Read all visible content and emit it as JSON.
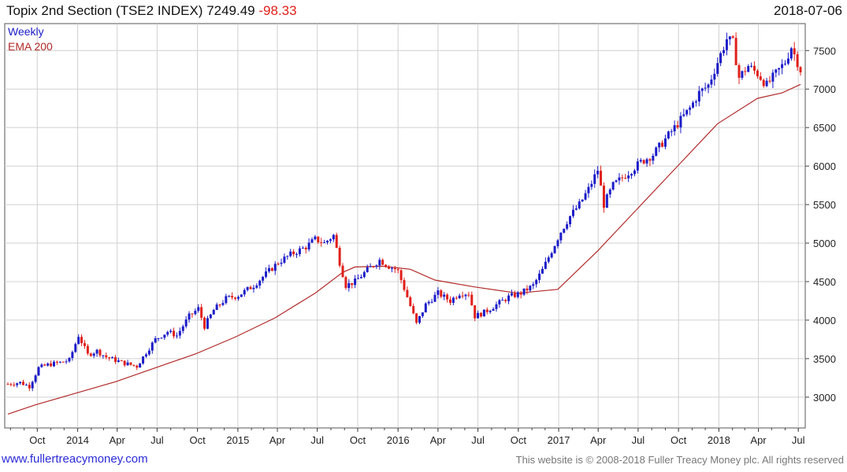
{
  "header": {
    "title": "Topix 2nd Section (TSE2 INDEX)",
    "last_value": "7249.49",
    "change": "-98.33",
    "date": "2018-07-06"
  },
  "legend": {
    "series1": "Weekly",
    "series2": "EMA 200"
  },
  "footer": {
    "link": "www.fullertreacymoney.com",
    "copyright": "This website is © 2008-2018 Fuller Treacy Money plc. All rights reserved"
  },
  "colors": {
    "up": "#1c1cc8",
    "down": "#e0201b",
    "ema": "#b22a2a",
    "grid": "#d0d0d0",
    "axis": "#444444"
  },
  "chart_data": {
    "type": "candlestick",
    "interval": "weekly",
    "x_start": "2013-07-26",
    "x_end": "2018-07-06",
    "x_tick_labels": [
      {
        "date": "2013-10-01",
        "label": "Oct"
      },
      {
        "date": "2014-01-01",
        "label": "2014"
      },
      {
        "date": "2014-04-01",
        "label": "Apr"
      },
      {
        "date": "2014-07-01",
        "label": "Jul"
      },
      {
        "date": "2014-10-01",
        "label": "Oct"
      },
      {
        "date": "2015-01-01",
        "label": "2015"
      },
      {
        "date": "2015-04-01",
        "label": "Apr"
      },
      {
        "date": "2015-07-01",
        "label": "Jul"
      },
      {
        "date": "2015-10-01",
        "label": "Oct"
      },
      {
        "date": "2016-01-01",
        "label": "2016"
      },
      {
        "date": "2016-04-01",
        "label": "Apr"
      },
      {
        "date": "2016-07-01",
        "label": "Jul"
      },
      {
        "date": "2016-10-01",
        "label": "Oct"
      },
      {
        "date": "2017-01-01",
        "label": "2017"
      },
      {
        "date": "2017-04-01",
        "label": "Apr"
      },
      {
        "date": "2017-07-01",
        "label": "Jul"
      },
      {
        "date": "2017-10-01",
        "label": "Oct"
      },
      {
        "date": "2018-01-01",
        "label": "2018"
      },
      {
        "date": "2018-04-01",
        "label": "Apr"
      },
      {
        "date": "2018-07-01",
        "label": "Jul"
      }
    ],
    "y_ticks": [
      3000,
      3500,
      4000,
      4500,
      5000,
      5500,
      6000,
      6500,
      7000,
      7500
    ],
    "ylim": [
      2600,
      7850
    ],
    "close_path": [
      [
        "2013-07-26",
        3170
      ],
      [
        "2013-08-23",
        3190
      ],
      [
        "2013-09-13",
        3140
      ],
      [
        "2013-10-04",
        3380
      ],
      [
        "2013-10-25",
        3420
      ],
      [
        "2013-11-22",
        3450
      ],
      [
        "2013-12-13",
        3480
      ],
      [
        "2014-01-03",
        3800
      ],
      [
        "2014-01-24",
        3550
      ],
      [
        "2014-02-14",
        3600
      ],
      [
        "2014-03-07",
        3520
      ],
      [
        "2014-03-28",
        3480
      ],
      [
        "2014-04-18",
        3440
      ],
      [
        "2014-05-16",
        3400
      ],
      [
        "2014-06-06",
        3580
      ],
      [
        "2014-06-27",
        3750
      ],
      [
        "2014-07-25",
        3850
      ],
      [
        "2014-08-15",
        3800
      ],
      [
        "2014-09-12",
        4050
      ],
      [
        "2014-10-03",
        4150
      ],
      [
        "2014-10-17",
        3920
      ],
      [
        "2014-11-07",
        4130
      ],
      [
        "2014-12-05",
        4280
      ],
      [
        "2015-01-02",
        4320
      ],
      [
        "2015-02-06",
        4450
      ],
      [
        "2015-03-06",
        4600
      ],
      [
        "2015-04-03",
        4750
      ],
      [
        "2015-05-01",
        4850
      ],
      [
        "2015-06-05",
        4950
      ],
      [
        "2015-06-26",
        5050
      ],
      [
        "2015-07-17",
        5000
      ],
      [
        "2015-08-07",
        5100
      ],
      [
        "2015-08-21",
        4750
      ],
      [
        "2015-09-04",
        4450
      ],
      [
        "2015-09-25",
        4500
      ],
      [
        "2015-10-23",
        4650
      ],
      [
        "2015-11-20",
        4780
      ],
      [
        "2015-12-11",
        4700
      ],
      [
        "2015-12-31",
        4650
      ],
      [
        "2016-01-22",
        4300
      ],
      [
        "2016-02-12",
        3950
      ],
      [
        "2016-03-04",
        4200
      ],
      [
        "2016-04-01",
        4350
      ],
      [
        "2016-04-29",
        4250
      ],
      [
        "2016-05-20",
        4350
      ],
      [
        "2016-06-10",
        4350
      ],
      [
        "2016-06-24",
        4050
      ],
      [
        "2016-07-15",
        4100
      ],
      [
        "2016-08-12",
        4200
      ],
      [
        "2016-09-09",
        4300
      ],
      [
        "2016-10-07",
        4350
      ],
      [
        "2016-11-04",
        4450
      ],
      [
        "2016-11-25",
        4650
      ],
      [
        "2016-12-16",
        4900
      ],
      [
        "2017-01-06",
        5150
      ],
      [
        "2017-01-27",
        5350
      ],
      [
        "2017-02-17",
        5500
      ],
      [
        "2017-03-10",
        5700
      ],
      [
        "2017-03-31",
        5950
      ],
      [
        "2017-04-14",
        5500
      ],
      [
        "2017-05-05",
        5750
      ],
      [
        "2017-05-26",
        5850
      ],
      [
        "2017-06-16",
        5950
      ],
      [
        "2017-07-07",
        6050
      ],
      [
        "2017-08-04",
        6150
      ],
      [
        "2017-09-01",
        6350
      ],
      [
        "2017-09-29",
        6550
      ],
      [
        "2017-10-27",
        6750
      ],
      [
        "2017-11-17",
        6950
      ],
      [
        "2017-12-08",
        7050
      ],
      [
        "2017-12-29",
        7350
      ],
      [
        "2018-01-19",
        7650
      ],
      [
        "2018-02-02",
        7600
      ],
      [
        "2018-02-16",
        7150
      ],
      [
        "2018-03-09",
        7300
      ],
      [
        "2018-03-30",
        7200
      ],
      [
        "2018-04-20",
        7050
      ],
      [
        "2018-05-11",
        7200
      ],
      [
        "2018-06-01",
        7350
      ],
      [
        "2018-06-15",
        7550
      ],
      [
        "2018-06-29",
        7350
      ],
      [
        "2018-07-06",
        7250
      ]
    ],
    "ema_path": [
      [
        "2013-07-26",
        2780
      ],
      [
        "2013-09-27",
        2900
      ],
      [
        "2013-12-27",
        3050
      ],
      [
        "2014-03-28",
        3200
      ],
      [
        "2014-06-27",
        3380
      ],
      [
        "2014-09-26",
        3560
      ],
      [
        "2014-12-26",
        3780
      ],
      [
        "2015-03-27",
        4030
      ],
      [
        "2015-06-26",
        4350
      ],
      [
        "2015-08-28",
        4620
      ],
      [
        "2015-09-25",
        4690
      ],
      [
        "2015-11-27",
        4700
      ],
      [
        "2016-01-29",
        4660
      ],
      [
        "2016-03-25",
        4520
      ],
      [
        "2016-06-24",
        4430
      ],
      [
        "2016-09-30",
        4350
      ],
      [
        "2016-12-30",
        4400
      ],
      [
        "2017-03-31",
        4900
      ],
      [
        "2017-06-30",
        5450
      ],
      [
        "2017-09-29",
        6000
      ],
      [
        "2017-12-29",
        6550
      ],
      [
        "2018-03-30",
        6880
      ],
      [
        "2018-05-25",
        6950
      ],
      [
        "2018-07-06",
        7060
      ]
    ]
  }
}
